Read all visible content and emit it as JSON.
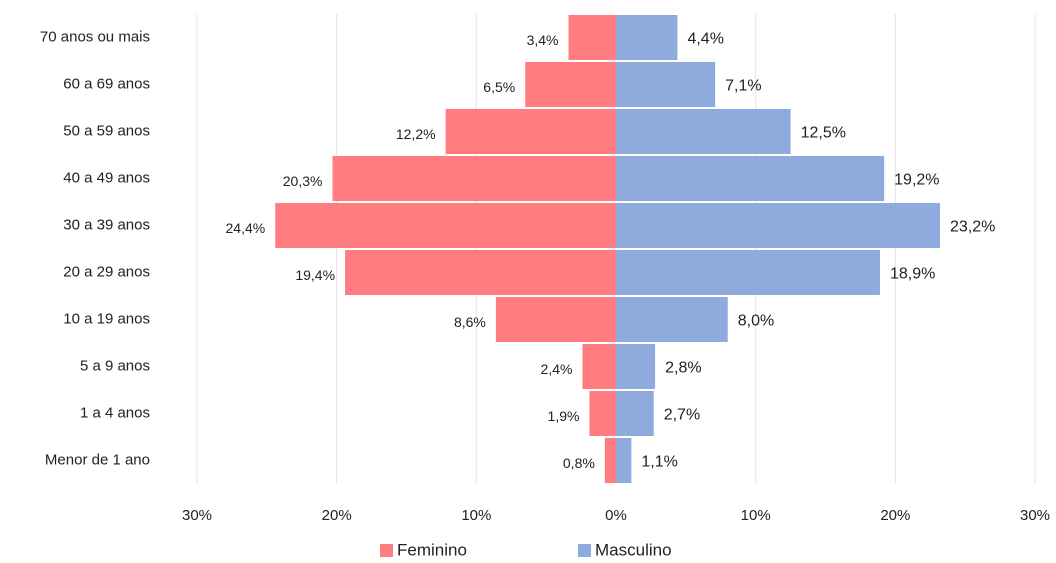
{
  "chart_data": {
    "type": "pyramid",
    "categories": [
      "70 anos ou mais",
      "60 a 69 anos",
      "50 a 59 anos",
      "40 a 49 anos",
      "30 a 39 anos",
      "20 a 29 anos",
      "10 a 19 anos",
      "5 a 9 anos",
      "1 a 4 anos",
      "Menor de 1 ano"
    ],
    "series": [
      {
        "name": "Feminino",
        "color": "#ff7c80",
        "values": [
          3.4,
          6.5,
          12.2,
          20.3,
          24.4,
          19.4,
          8.6,
          2.4,
          1.9,
          0.8
        ],
        "value_labels": [
          "3,4%",
          "6,5%",
          "12,2%",
          "20,3%",
          "24,4%",
          "19,4%",
          "8,6%",
          "2,4%",
          "1,9%",
          "0,8%"
        ]
      },
      {
        "name": "Masculino",
        "color": "#8faadc",
        "values": [
          4.4,
          7.1,
          12.5,
          19.2,
          23.2,
          18.9,
          8.0,
          2.8,
          2.7,
          1.1
        ],
        "value_labels": [
          "4,4%",
          "7,1%",
          "12,5%",
          "19,2%",
          "23,2%",
          "18,9%",
          "8,0%",
          "2,8%",
          "2,7%",
          "1,1%"
        ]
      }
    ],
    "xlim": [
      -30,
      30
    ],
    "xticks": [
      {
        "value": -30,
        "label": "30%"
      },
      {
        "value": -20,
        "label": "20%"
      },
      {
        "value": -10,
        "label": "10%"
      },
      {
        "value": 0,
        "label": "0%"
      },
      {
        "value": 10,
        "label": "10%"
      },
      {
        "value": 20,
        "label": "20%"
      },
      {
        "value": 30,
        "label": "30%"
      }
    ],
    "grid": true,
    "legend": "bottom"
  }
}
